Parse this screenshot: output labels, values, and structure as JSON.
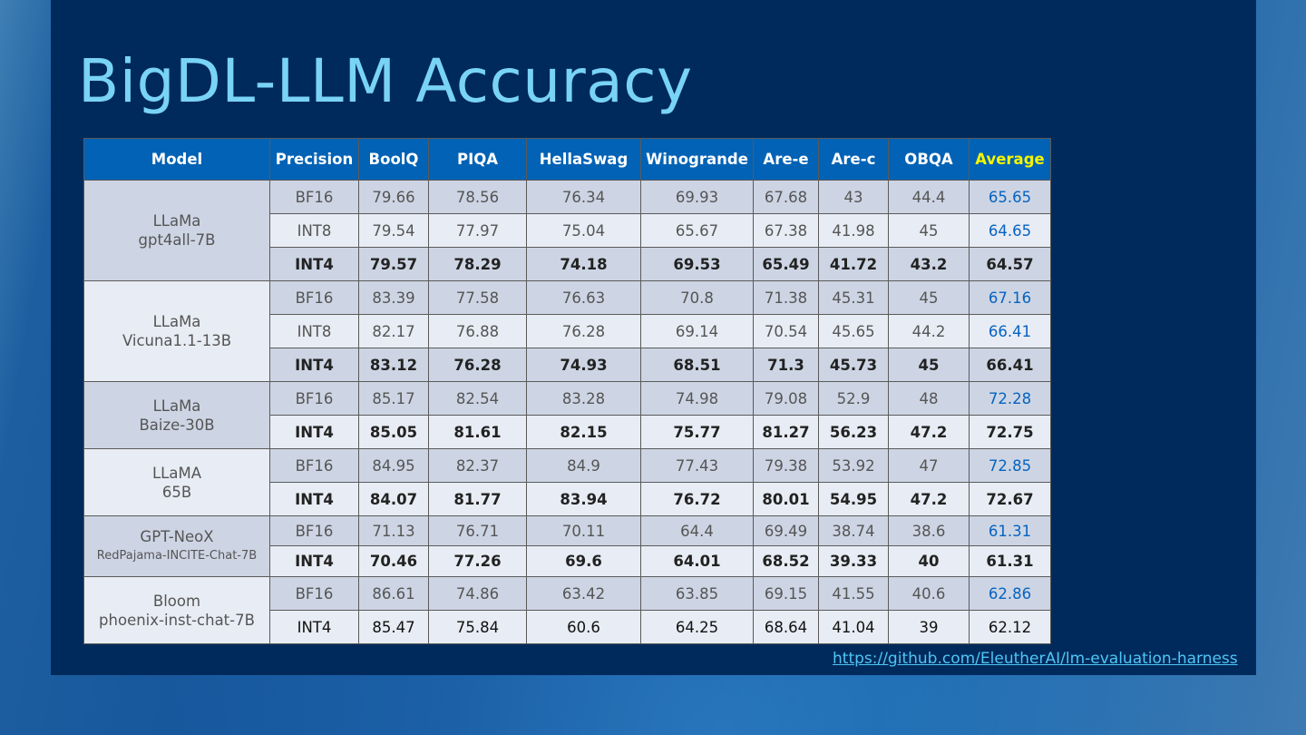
{
  "title": "BigDL-LLM Accuracy",
  "table": {
    "headers": [
      "Model",
      "Precision",
      "BoolQ",
      "PIQA",
      "HellaSwag",
      "Winogrande",
      "Are-e",
      "Are-c",
      "OBQA",
      "Average"
    ],
    "groups": [
      {
        "model_line1": "LLaMa",
        "model_line2": "gpt4all-7B",
        "rows": [
          {
            "precision": "BF16",
            "values": [
              "79.66",
              "78.56",
              "76.34",
              "69.93",
              "67.68",
              "43",
              "44.4",
              "65.65"
            ]
          },
          {
            "precision": "INT8",
            "values": [
              "79.54",
              "77.97",
              "75.04",
              "65.67",
              "67.38",
              "41.98",
              "45",
              "64.65"
            ]
          },
          {
            "precision": "INT4",
            "values": [
              "79.57",
              "78.29",
              "74.18",
              "69.53",
              "65.49",
              "41.72",
              "43.2",
              "64.57"
            ]
          }
        ]
      },
      {
        "model_line1": "LLaMa",
        "model_line2": "Vicuna1.1-13B",
        "rows": [
          {
            "precision": "BF16",
            "values": [
              "83.39",
              "77.58",
              "76.63",
              "70.8",
              "71.38",
              "45.31",
              "45",
              "67.16"
            ]
          },
          {
            "precision": "INT8",
            "values": [
              "82.17",
              "76.88",
              "76.28",
              "69.14",
              "70.54",
              "45.65",
              "44.2",
              "66.41"
            ]
          },
          {
            "precision": "INT4",
            "values": [
              "83.12",
              "76.28",
              "74.93",
              "68.51",
              "71.3",
              "45.73",
              "45",
              "66.41"
            ]
          }
        ]
      },
      {
        "model_line1": "LLaMa",
        "model_line2": "Baize-30B",
        "rows": [
          {
            "precision": "BF16",
            "values": [
              "85.17",
              "82.54",
              "83.28",
              "74.98",
              "79.08",
              "52.9",
              "48",
              "72.28"
            ]
          },
          {
            "precision": "INT4",
            "values": [
              "85.05",
              "81.61",
              "82.15",
              "75.77",
              "81.27",
              "56.23",
              "47.2",
              "72.75"
            ]
          }
        ]
      },
      {
        "model_line1": "LLaMA",
        "model_line2": "65B",
        "rows": [
          {
            "precision": "BF16",
            "values": [
              "84.95",
              "82.37",
              "84.9",
              "77.43",
              "79.38",
              "53.92",
              "47",
              "72.85"
            ]
          },
          {
            "precision": "INT4",
            "values": [
              "84.07",
              "81.77",
              "83.94",
              "76.72",
              "80.01",
              "54.95",
              "47.2",
              "72.67"
            ]
          }
        ]
      },
      {
        "model_line1": "GPT-NeoX",
        "model_line2": "RedPajama-INCITE-Chat-7B",
        "rows": [
          {
            "precision": "BF16",
            "values": [
              "71.13",
              "76.71",
              "70.11",
              "64.4",
              "69.49",
              "38.74",
              "38.6",
              "61.31"
            ]
          },
          {
            "precision": "INT4",
            "values": [
              "70.46",
              "77.26",
              "69.6",
              "64.01",
              "68.52",
              "39.33",
              "40",
              "61.31"
            ]
          }
        ]
      },
      {
        "model_line1": "Bloom",
        "model_line2": "phoenix-inst-chat-7B",
        "rows": [
          {
            "precision": "BF16",
            "values": [
              "86.61",
              "74.86",
              "63.42",
              "63.85",
              "69.15",
              "41.55",
              "40.6",
              "62.86"
            ]
          },
          {
            "precision": "INT4",
            "values": [
              "85.47",
              "75.84",
              "60.6",
              "64.25",
              "68.64",
              "41.04",
              "39",
              "62.12"
            ]
          }
        ]
      }
    ]
  },
  "source_link": "https://github.com/EleutherAI/lm-evaluation-harness"
}
